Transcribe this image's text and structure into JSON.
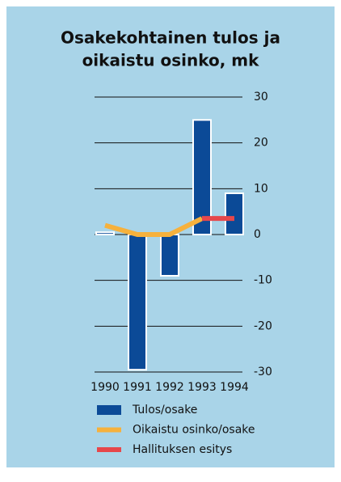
{
  "chart_data": {
    "type": "bar",
    "title": [
      "Osakekohtainen tulos ja",
      "oikaistu osinko, mk"
    ],
    "categories": [
      "1990",
      "1991",
      "1992",
      "1993",
      "1994"
    ],
    "series": [
      {
        "name": "Tulos/osake",
        "type": "bar",
        "color": "#0b4a97",
        "values": [
          0.5,
          -29.5,
          -9,
          25,
          9
        ]
      },
      {
        "name": "Oikaistu osinko/osake",
        "type": "line",
        "color": "#f6b13c",
        "values": [
          2,
          0,
          0,
          3.5,
          null
        ]
      },
      {
        "name": "Hallituksen esitys",
        "type": "line",
        "color": "#e6474b",
        "values": [
          null,
          null,
          null,
          3.5,
          3.5
        ]
      }
    ],
    "ylim": [
      -30,
      30
    ],
    "yticks": [
      30,
      20,
      10,
      0,
      -10,
      -20,
      -30
    ],
    "grid": true
  }
}
